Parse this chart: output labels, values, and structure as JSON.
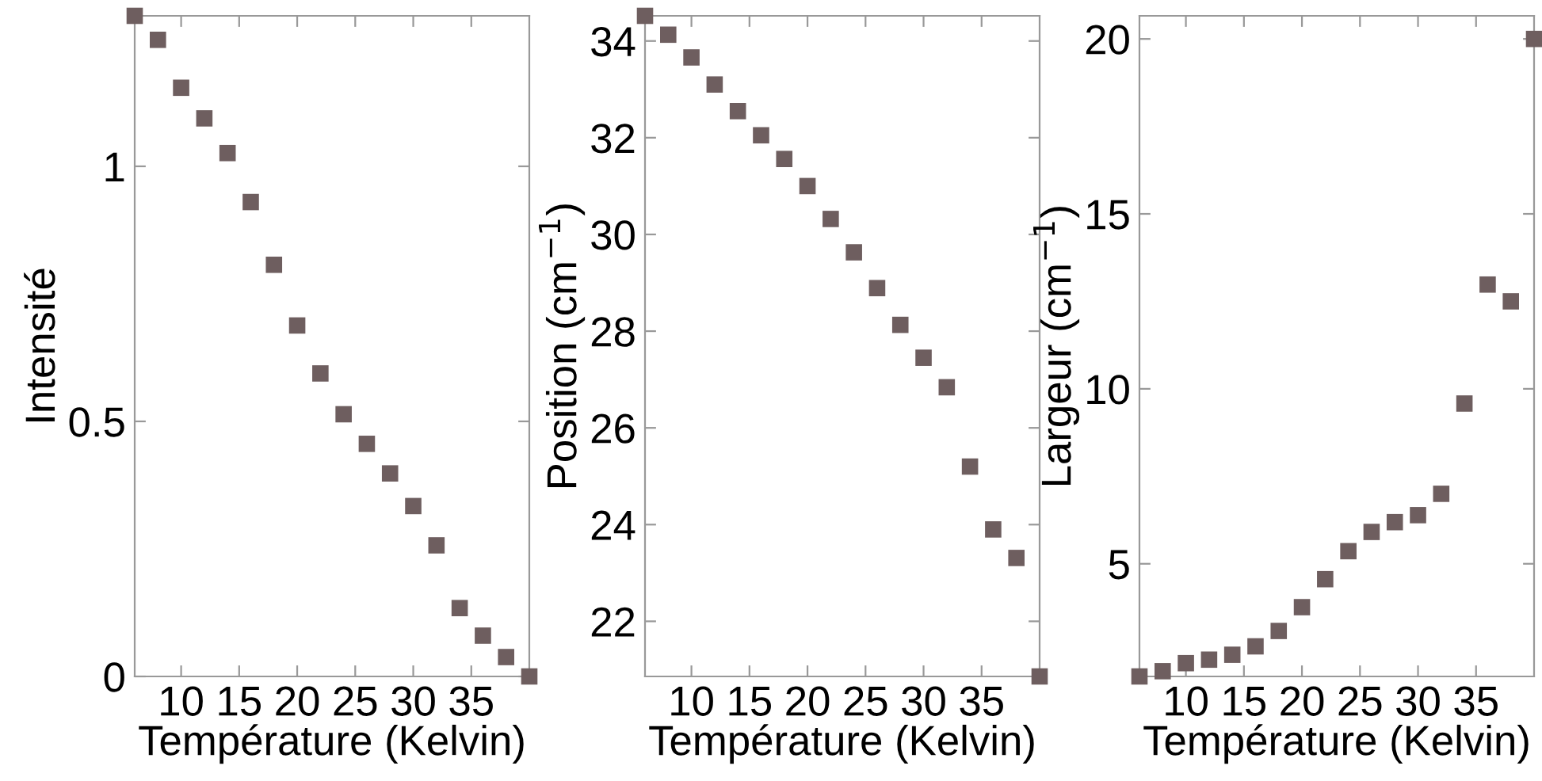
{
  "chart_data": [
    {
      "type": "scatter",
      "xlabel": "Température (Kelvin)",
      "ylabel": "Intensité",
      "marker": "square",
      "grid": false,
      "legend": false,
      "x": [
        6,
        8,
        10,
        12,
        14,
        16,
        18,
        20,
        22,
        24,
        26,
        28,
        30,
        32,
        34,
        36,
        38,
        40
      ],
      "series": [
        {
          "color": "#6e5e5f",
          "values": [
            1.295,
            1.248,
            1.154,
            1.094,
            1.026,
            0.93,
            0.807,
            0.688,
            0.594,
            0.514,
            0.456,
            0.398,
            0.334,
            0.257,
            0.134,
            0.08,
            0.038,
            0.0
          ]
        }
      ],
      "xlim": [
        6,
        40
      ],
      "xticks": [
        10,
        15,
        20,
        25,
        30,
        35
      ],
      "ylim": [
        0,
        1.295
      ],
      "yticks": [
        0,
        0.5,
        1
      ]
    },
    {
      "type": "scatter",
      "xlabel": "Température (Kelvin)",
      "ylabel": "Position (cm$^{−1}$)",
      "marker": "square",
      "grid": false,
      "legend": false,
      "x": [
        6,
        8,
        10,
        12,
        14,
        16,
        18,
        20,
        22,
        24,
        26,
        28,
        30,
        32,
        34,
        36,
        38,
        40
      ],
      "series": [
        {
          "color": "#6e5e5f",
          "values": [
            34.52,
            34.13,
            33.66,
            33.1,
            32.55,
            32.05,
            31.56,
            31.0,
            30.32,
            29.63,
            28.89,
            28.13,
            27.45,
            26.84,
            25.2,
            23.9,
            23.31,
            20.86
          ]
        }
      ],
      "xlim": [
        6,
        40
      ],
      "xticks": [
        10,
        15,
        20,
        25,
        30,
        35
      ],
      "ylim": [
        20.86,
        34.52
      ],
      "yticks": [
        22,
        24,
        26,
        28,
        30,
        32,
        34
      ]
    },
    {
      "type": "scatter",
      "xlabel": "Température (Kelvin)",
      "ylabel": "Largeur (cm$^{−1}$)",
      "marker": "square",
      "grid": false,
      "legend": false,
      "x": [
        6,
        8,
        10,
        12,
        14,
        16,
        18,
        20,
        22,
        24,
        26,
        28,
        30,
        32,
        34,
        36,
        38,
        40
      ],
      "series": [
        {
          "color": "#6e5e5f",
          "values": [
            1.78,
            1.93,
            2.16,
            2.26,
            2.4,
            2.64,
            3.08,
            3.76,
            4.56,
            5.36,
            5.91,
            6.19,
            6.39,
            7.0,
            9.58,
            12.98,
            12.5,
            20.0
          ]
        }
      ],
      "xlim": [
        6,
        40
      ],
      "xticks": [
        10,
        15,
        20,
        25,
        30,
        35
      ],
      "ylim": [
        1.78,
        20.66
      ],
      "yticks": [
        5,
        10,
        15,
        20
      ]
    }
  ]
}
